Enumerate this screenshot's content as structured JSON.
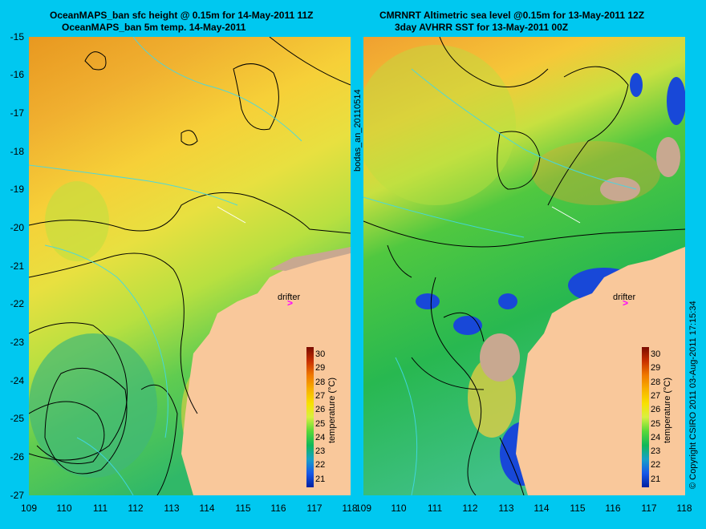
{
  "titles": {
    "left_line1": "OceanMAPS_ban sfc height @ 0.15m for 14-May-2011 11Z",
    "left_line2": "OceanMAPS_ban 5m temp. 14-May-2011",
    "right_line1": "CMRNRT Altimetric sea level  @0.15m  for 13-May-2011 12Z",
    "right_line2": "3day AVHRR SST for 13-May-2011 00Z"
  },
  "axes": {
    "lat_ticks": [
      "-15",
      "-16",
      "-17",
      "-18",
      "-19",
      "-20",
      "-21",
      "-22",
      "-23",
      "-24",
      "-25",
      "-26",
      "-27"
    ],
    "lon_ticks": [
      "109",
      "110",
      "111",
      "112",
      "113",
      "114",
      "115",
      "116",
      "117",
      "118"
    ]
  },
  "colorbar": {
    "label": "temperature (°C)",
    "ticks": [
      "30",
      "29",
      "28",
      "27",
      "26",
      "25",
      "24",
      "23",
      "22",
      "21"
    ],
    "colors": [
      "#7a0c00",
      "#c83000",
      "#f07800",
      "#f8b000",
      "#f8e000",
      "#d8f040",
      "#58d838",
      "#10b858",
      "#18a0c8",
      "#1858e8",
      "#0020a0"
    ]
  },
  "drifter_label": "drifter",
  "side_label": "bodas_an_20110514",
  "copyright": "© Copyright CSIRO 2011   03-Aug-2011 17:15:34",
  "colors": {
    "background": "#00c8f0",
    "land": "#f9c89b",
    "coast_ice": "#c8a890",
    "drifter": "#ff00ff"
  }
}
